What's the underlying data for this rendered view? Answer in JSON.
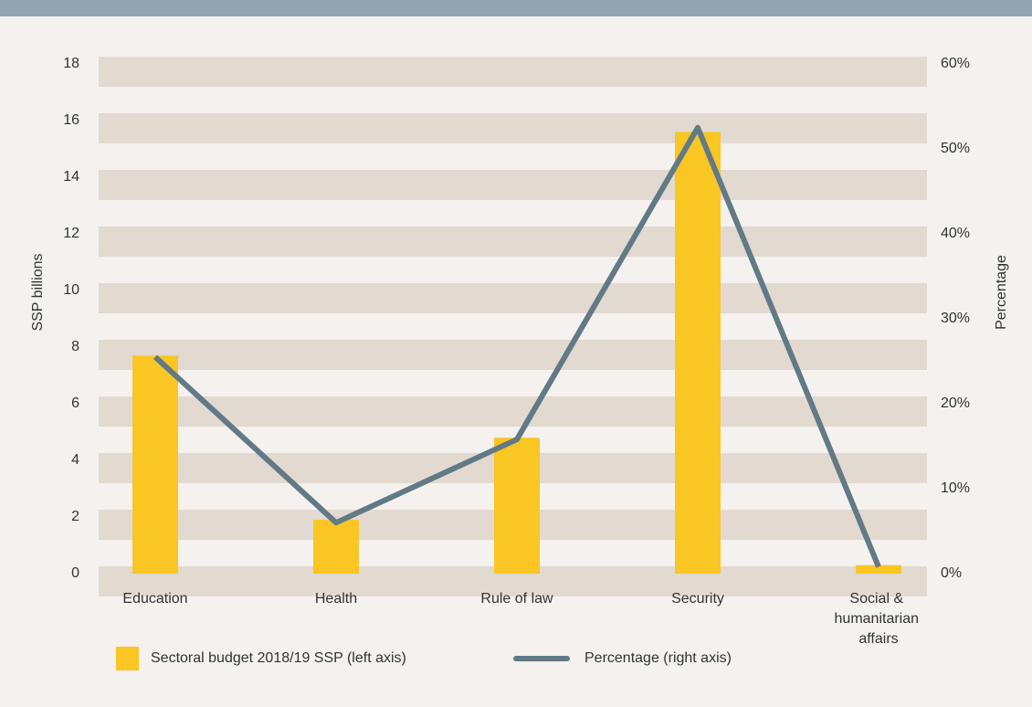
{
  "chart_data": {
    "type": "bar_line",
    "categories": [
      "Education",
      "Health",
      "Rule of law",
      "Security",
      "Social & humanitarian affairs"
    ],
    "series": [
      {
        "name": "Sectoral budget 2018/19 SSP (left axis)",
        "color": "#f9c623",
        "type": "bar",
        "values": [
          7.7,
          1.9,
          4.8,
          15.6,
          0.3
        ]
      },
      {
        "name": "Percentage (right axis)",
        "color": "#627986",
        "type": "line",
        "axis": "y2",
        "values": [
          25.5,
          6,
          15.8,
          52.5,
          0.8
        ]
      }
    ],
    "ylabel": "SSP billions",
    "y2label": "Percentage",
    "ylim": [
      0,
      18
    ],
    "yticks": [
      0,
      2,
      4,
      6,
      8,
      10,
      12,
      14,
      16,
      18
    ],
    "y2lim": [
      0,
      60
    ],
    "y2ticks": [
      {
        "value": 0,
        "label": "0%"
      },
      {
        "value": 10,
        "label": "10%"
      },
      {
        "value": 20,
        "label": "20%"
      },
      {
        "value": 30,
        "label": "30%"
      },
      {
        "value": 40,
        "label": "40%"
      },
      {
        "value": 50,
        "label": "50%"
      },
      {
        "value": 60,
        "label": "60%"
      }
    ],
    "grid": true
  }
}
